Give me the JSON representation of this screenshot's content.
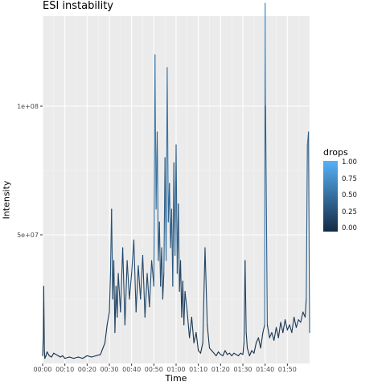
{
  "chart_data": {
    "type": "line",
    "title": "ESI instability",
    "xlabel": "Time",
    "ylabel": "Intensity",
    "xlim_minutes": [
      0,
      120
    ],
    "ylim": [
      0,
      135000000
    ],
    "x_ticks": [
      {
        "value": 0,
        "label": "00:00"
      },
      {
        "value": 10,
        "label": "00:10"
      },
      {
        "value": 20,
        "label": "00:20"
      },
      {
        "value": 30,
        "label": "00:30"
      },
      {
        "value": 40,
        "label": "00:40"
      },
      {
        "value": 50,
        "label": "00:50"
      },
      {
        "value": 60,
        "label": "01:00"
      },
      {
        "value": 70,
        "label": "01:10"
      },
      {
        "value": 80,
        "label": "01:20"
      },
      {
        "value": 90,
        "label": "01:30"
      },
      {
        "value": 100,
        "label": "01:40"
      },
      {
        "value": 110,
        "label": "01:50"
      }
    ],
    "y_ticks": [
      {
        "value": 50000000,
        "label": "5e+07"
      },
      {
        "value": 100000000,
        "label": "1e+08"
      }
    ],
    "color_legend": {
      "title": "drops",
      "low_color": "#132B43",
      "high_color": "#56B1F7",
      "ticks": [
        {
          "value": 1.0,
          "label": "1.00"
        },
        {
          "value": 0.75,
          "label": "0.75"
        },
        {
          "value": 0.5,
          "label": "0.50"
        },
        {
          "value": 0.25,
          "label": "0.25"
        },
        {
          "value": 0.0,
          "label": "0.00"
        }
      ]
    },
    "grid": true,
    "panel_background": "#EBEBEB",
    "series": [
      {
        "x": [
          0,
          0.3,
          0.5,
          0.8,
          1,
          1.5,
          2,
          3,
          4,
          5,
          6,
          7,
          8,
          9,
          10,
          12,
          14,
          16,
          18,
          20,
          22,
          24,
          26,
          28,
          29,
          30,
          30.5,
          31,
          31.5,
          32,
          32.5,
          33,
          33.5,
          34,
          35,
          36,
          37,
          38,
          39,
          40,
          41,
          42,
          43,
          44,
          45,
          46,
          47,
          48,
          49,
          50,
          50.5,
          51,
          51.5,
          52,
          52.5,
          53,
          53.5,
          54,
          54.5,
          55,
          55.5,
          56,
          56.5,
          57,
          57.5,
          58,
          58.5,
          59,
          59.5,
          60,
          60.5,
          61,
          61.5,
          62,
          62.5,
          63,
          63.5,
          64,
          65,
          66,
          67,
          68,
          69,
          70,
          71,
          72,
          73,
          74,
          75,
          76,
          77,
          78,
          79,
          80,
          81,
          82,
          83,
          84,
          85,
          86,
          87,
          88,
          89,
          90,
          90.5,
          91,
          91.5,
          92,
          93,
          94,
          95,
          96,
          97,
          98,
          99,
          99.8,
          100,
          100.2,
          101,
          102,
          103,
          104,
          105,
          106,
          107,
          108,
          109,
          110,
          111,
          112,
          113,
          114,
          115,
          116,
          117,
          118,
          118.5,
          119,
          119.5,
          120
        ],
        "y": [
          3000000,
          10000000,
          30000000,
          5000000,
          2000000,
          3000000,
          4500000,
          3000000,
          2500000,
          4000000,
          3500000,
          3000000,
          2500000,
          3000000,
          2000000,
          2500000,
          2000000,
          2500000,
          2000000,
          3000000,
          2500000,
          3000000,
          3500000,
          8000000,
          15000000,
          20000000,
          35000000,
          60000000,
          25000000,
          40000000,
          12000000,
          30000000,
          18000000,
          35000000,
          20000000,
          45000000,
          15000000,
          40000000,
          25000000,
          35000000,
          48000000,
          20000000,
          38000000,
          25000000,
          42000000,
          18000000,
          35000000,
          22000000,
          40000000,
          30000000,
          120000000,
          60000000,
          90000000,
          40000000,
          55000000,
          30000000,
          45000000,
          25000000,
          35000000,
          80000000,
          40000000,
          115000000,
          55000000,
          70000000,
          45000000,
          60000000,
          30000000,
          78000000,
          42000000,
          85000000,
          35000000,
          62000000,
          28000000,
          40000000,
          18000000,
          32000000,
          15000000,
          28000000,
          20000000,
          10000000,
          18000000,
          8000000,
          12000000,
          5000000,
          4000000,
          8000000,
          45000000,
          15000000,
          6000000,
          5000000,
          4000000,
          3000000,
          4500000,
          3500000,
          3000000,
          5000000,
          3500000,
          4000000,
          3000000,
          4000000,
          3500000,
          3000000,
          4000000,
          3500000,
          8000000,
          40000000,
          12000000,
          6000000,
          3000000,
          5000000,
          4000000,
          8000000,
          10000000,
          6000000,
          12000000,
          15000000,
          140000000,
          100000000,
          15000000,
          10000000,
          12000000,
          9000000,
          14000000,
          10000000,
          16000000,
          12000000,
          17000000,
          13000000,
          15000000,
          12000000,
          18000000,
          14000000,
          17000000,
          16000000,
          20000000,
          18000000,
          25000000,
          85000000,
          90000000,
          12000000
        ]
      }
    ]
  }
}
